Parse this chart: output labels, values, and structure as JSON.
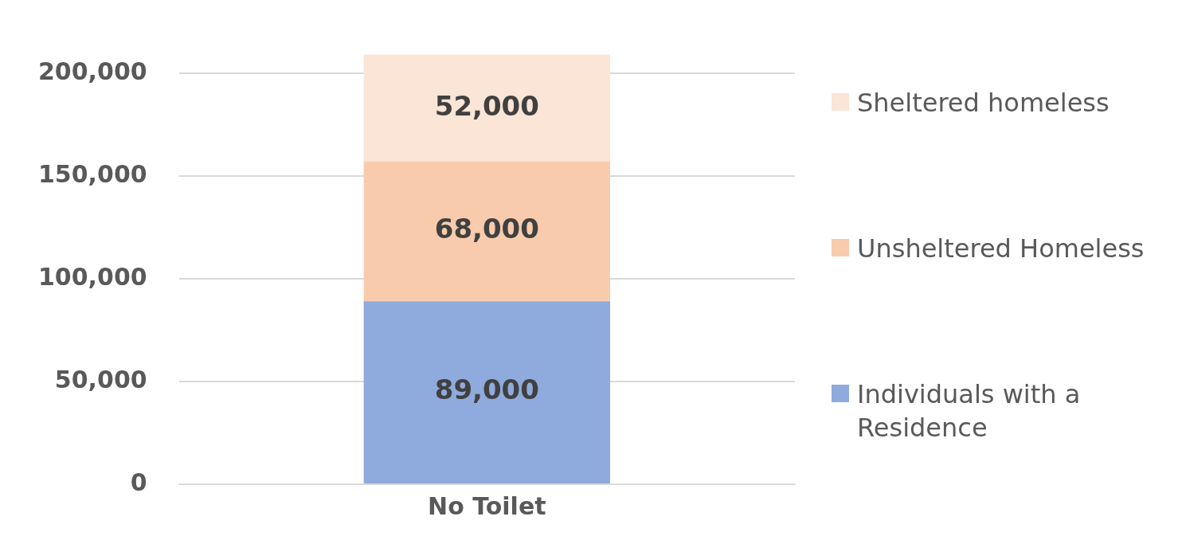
{
  "chart_data": {
    "type": "bar",
    "stacked": true,
    "categories": [
      "No Toilet"
    ],
    "series": [
      {
        "name": "Individuals with a Residence",
        "color": "#8faadc",
        "values": [
          89000
        ]
      },
      {
        "name": "Unsheltered Homeless",
        "color": "#f8cbad",
        "values": [
          68000
        ]
      },
      {
        "name": "Sheltered homeless",
        "color": "#fbe5d6",
        "values": [
          52000
        ]
      }
    ],
    "ylim": [
      0,
      210000
    ],
    "yticks": [
      {
        "value": 0,
        "label": "0"
      },
      {
        "value": 50000,
        "label": "50,000"
      },
      {
        "value": 100000,
        "label": "100,000"
      },
      {
        "value": 150000,
        "label": "150,000"
      },
      {
        "value": 200000,
        "label": "200,000"
      }
    ],
    "grid": "y",
    "legend": "right",
    "value_labels": [
      [
        "89,000"
      ],
      [
        "68,000"
      ],
      [
        "52,000"
      ]
    ]
  }
}
